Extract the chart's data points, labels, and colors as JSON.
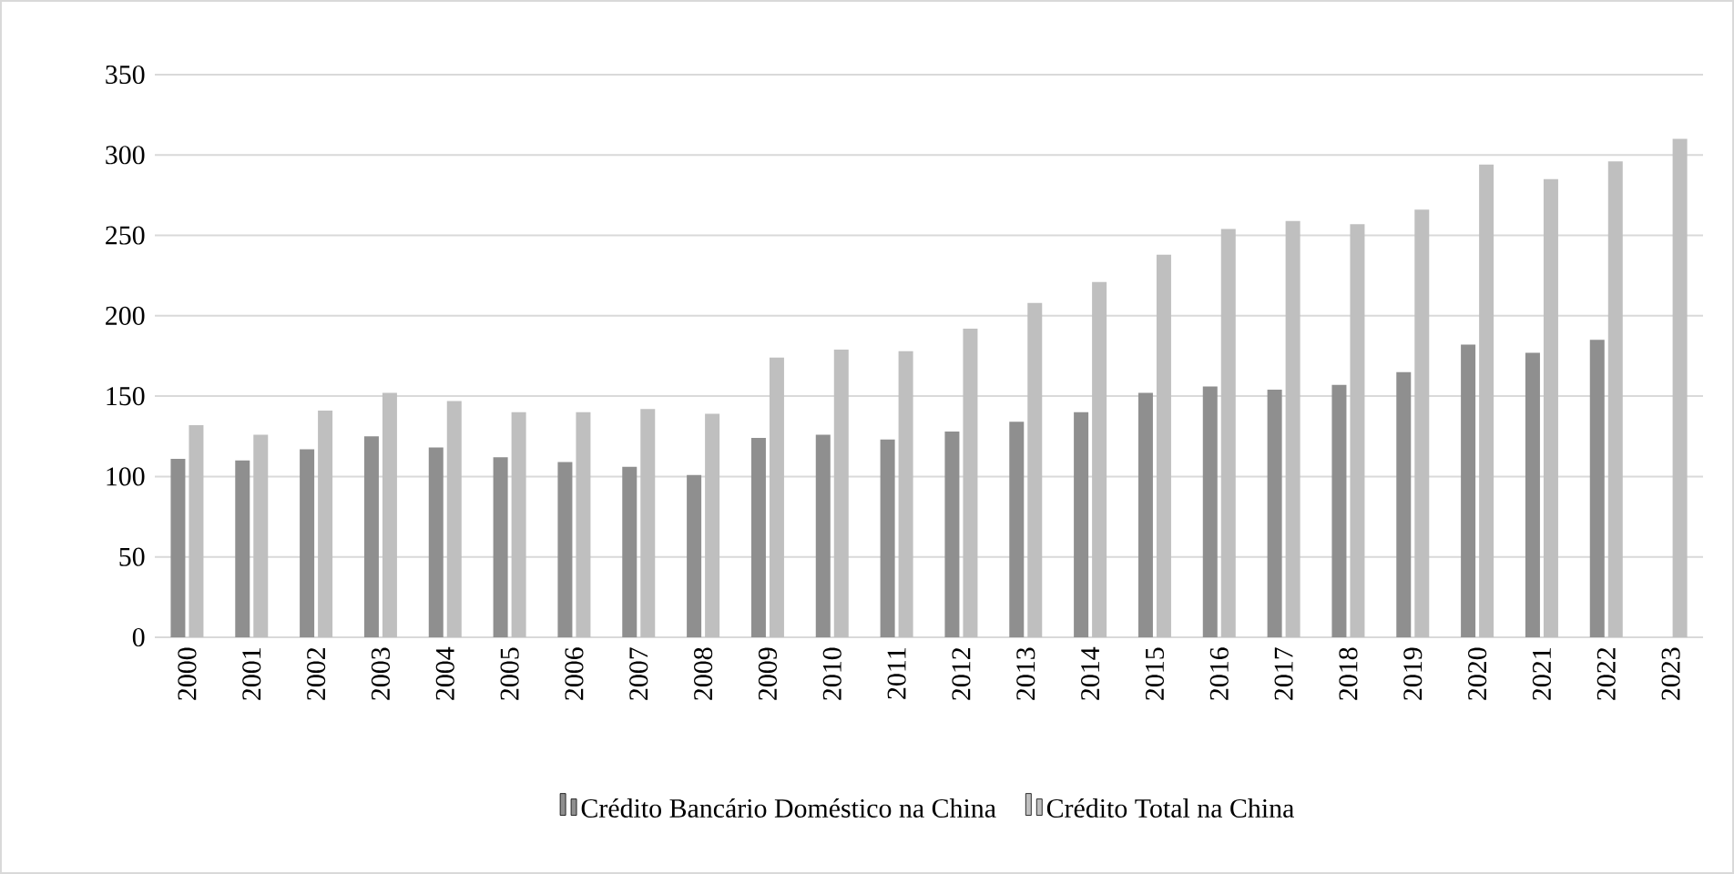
{
  "chart_data": {
    "type": "bar",
    "categories": [
      "2000",
      "2001",
      "2002",
      "2003",
      "2004",
      "2005",
      "2006",
      "2007",
      "2008",
      "2009",
      "2010",
      "2011",
      "2012",
      "2013",
      "2014",
      "2015",
      "2016",
      "2017",
      "2018",
      "2019",
      "2020",
      "2021",
      "2022",
      "2023"
    ],
    "series": [
      {
        "name": "Crédito Bancário Doméstico na China",
        "color": "#8f8f8f",
        "values": [
          111,
          110,
          117,
          125,
          118,
          112,
          109,
          106,
          101,
          124,
          126,
          123,
          128,
          134,
          140,
          152,
          156,
          154,
          157,
          165,
          182,
          177,
          185,
          null
        ]
      },
      {
        "name": "Crédito Total na China",
        "color": "#bfbfbf",
        "values": [
          132,
          126,
          141,
          152,
          147,
          140,
          140,
          142,
          139,
          174,
          179,
          178,
          192,
          208,
          221,
          238,
          254,
          259,
          257,
          266,
          294,
          285,
          296,
          310
        ]
      }
    ],
    "ylim": [
      0,
      350
    ],
    "yticks": [
      0,
      50,
      100,
      150,
      200,
      250,
      300,
      350
    ],
    "grid": "y",
    "legend": "bottom"
  }
}
